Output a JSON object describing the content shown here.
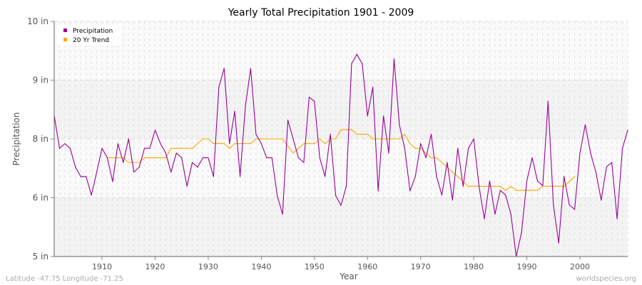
{
  "chart_data": {
    "type": "line",
    "title": "Yearly Total Precipitation 1901 - 2009",
    "xlabel": "Year",
    "ylabel": "Precipitation",
    "xlim": [
      1901,
      2009
    ],
    "x_ticks": [
      1910,
      1920,
      1930,
      1940,
      1950,
      1960,
      1970,
      1980,
      1990,
      2000
    ],
    "y_ticks": [
      {
        "value": 10,
        "label": "10 in"
      },
      {
        "value": 9,
        "label": "9 in"
      },
      {
        "value": 8,
        "label": "8 in"
      },
      {
        "value": 6,
        "label": "6 in"
      },
      {
        "value": 5,
        "label": "5 in"
      }
    ],
    "grid": true,
    "legend_position": "top-left",
    "series": [
      {
        "name": "Precipitation",
        "color": "#990099",
        "start_year": 1901,
        "values": [
          8.4,
          7.68,
          7.84,
          7.68,
          7.04,
          6.72,
          6.72,
          6.09,
          6.87,
          7.68,
          7.36,
          6.55,
          7.84,
          7.2,
          8.0,
          6.87,
          7.04,
          7.68,
          7.68,
          8.15,
          7.84,
          7.52,
          6.87,
          7.52,
          7.36,
          6.39,
          7.2,
          7.04,
          7.36,
          7.36,
          6.72,
          8.88,
          9.2,
          7.84,
          8.47,
          6.72,
          8.56,
          9.2,
          8.08,
          7.84,
          7.36,
          7.36,
          6.07,
          5.72,
          8.32,
          8.0,
          7.36,
          7.2,
          8.71,
          8.64,
          7.36,
          6.72,
          8.08,
          6.07,
          5.87,
          6.39,
          9.28,
          9.44,
          9.28,
          8.39,
          8.88,
          6.23,
          8.39,
          7.52,
          9.36,
          8.24,
          7.68,
          6.23,
          6.72,
          7.84,
          7.36,
          8.08,
          6.72,
          6.09,
          7.2,
          5.96,
          7.68,
          6.39,
          7.68,
          8.0,
          6.39,
          5.64,
          6.57,
          5.72,
          6.25,
          6.09,
          5.72,
          5.0,
          5.41,
          6.57,
          7.36,
          6.57,
          6.41,
          8.64,
          5.88,
          5.23,
          6.72,
          5.88,
          5.8,
          7.52,
          8.24,
          7.52,
          6.87,
          5.96,
          7.05,
          7.2,
          5.64,
          7.68,
          8.15
        ]
      },
      {
        "name": "20 Yr Trend",
        "color": "#ffa500",
        "start_year": 1911,
        "values": [
          7.36,
          7.36,
          7.36,
          7.36,
          7.2,
          7.2,
          7.2,
          7.36,
          7.36,
          7.36,
          7.36,
          7.36,
          7.68,
          7.68,
          7.68,
          7.68,
          7.68,
          7.84,
          8.0,
          8.0,
          7.84,
          7.84,
          7.84,
          7.68,
          7.84,
          7.84,
          7.84,
          7.84,
          8.0,
          8.0,
          8.0,
          8.0,
          8.0,
          8.0,
          7.76,
          7.52,
          7.68,
          7.84,
          7.84,
          7.84,
          8.0,
          7.84,
          8.0,
          8.0,
          8.16,
          8.16,
          8.16,
          8.08,
          8.08,
          8.08,
          8.0,
          8.0,
          8.0,
          8.0,
          8.0,
          8.0,
          8.08,
          7.84,
          7.68,
          7.68,
          7.52,
          7.36,
          7.36,
          7.2,
          7.04,
          6.87,
          6.72,
          6.55,
          6.39,
          6.39,
          6.39,
          6.39,
          6.39,
          6.39,
          6.39,
          6.25,
          6.39,
          6.25,
          6.25,
          6.25,
          6.25,
          6.25,
          6.39,
          6.39,
          6.39,
          6.39,
          6.39,
          6.55,
          6.72
        ]
      }
    ]
  },
  "footer": {
    "location": "Latitude -47.75 Longitude -71.25",
    "source": "worldspecies.org"
  }
}
